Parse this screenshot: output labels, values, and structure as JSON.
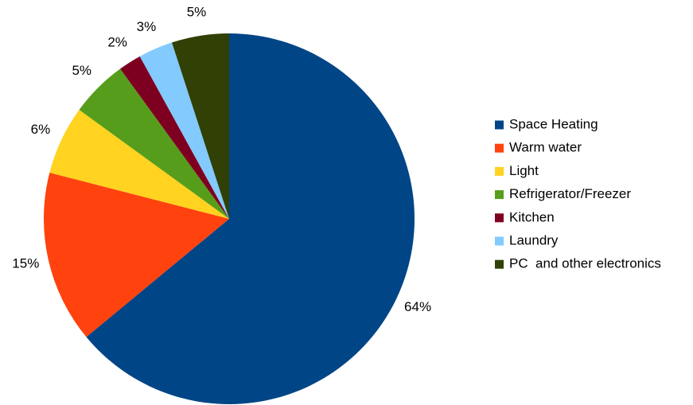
{
  "chart_data": {
    "type": "pie",
    "categories": [
      "Space Heating",
      "Warm water",
      "Light",
      "Refrigerator/Freezer",
      "Kitchen",
      "Laundry",
      "PC  and other electronics"
    ],
    "values": [
      64,
      15,
      6,
      5,
      2,
      3,
      5
    ],
    "value_labels": [
      "64%",
      "15%",
      "6%",
      "5%",
      "2%",
      "3%",
      "5%"
    ],
    "colors": [
      "#004586",
      "#ff420e",
      "#ffd320",
      "#579d1c",
      "#7e0021",
      "#83caff",
      "#314004"
    ],
    "legend": "right"
  }
}
